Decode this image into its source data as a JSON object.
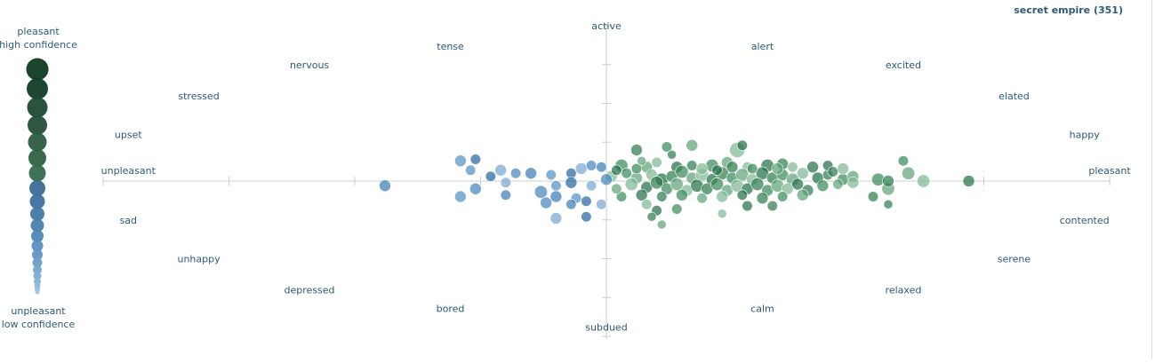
{
  "colors": {
    "axis": "#c8ccd1",
    "label": "#2e5a78",
    "pleasant_series": "#2e7d52",
    "unpleasant_series": "#3e7eb8"
  },
  "chart_data": {
    "type": "scatter",
    "title": "secret empire (351)",
    "x_axis": {
      "negative_label": "unpleasant",
      "positive_label": "pleasant",
      "xlim": [
        -1,
        1
      ]
    },
    "y_axis": {
      "positive_label": "active",
      "negative_label": "subdued",
      "ylim": [
        -1,
        1
      ]
    },
    "grid": false,
    "legend": {
      "placement": "left",
      "top_label_1": "pleasant",
      "top_label_2": "high confidence",
      "bottom_label_1": "unpleasant",
      "bottom_label_2": "low confidence"
    },
    "emotion_labels": [
      {
        "text": "active",
        "x": 0.0,
        "y": 1.0
      },
      {
        "text": "alert",
        "x": 0.31,
        "y": 0.87
      },
      {
        "text": "excited",
        "x": 0.59,
        "y": 0.75
      },
      {
        "text": "elated",
        "x": 0.81,
        "y": 0.55
      },
      {
        "text": "happy",
        "x": 0.95,
        "y": 0.3
      },
      {
        "text": "pleasant",
        "x": 1.0,
        "y": 0.07
      },
      {
        "text": "contented",
        "x": 0.95,
        "y": -0.25
      },
      {
        "text": "serene",
        "x": 0.81,
        "y": -0.5
      },
      {
        "text": "relaxed",
        "x": 0.59,
        "y": -0.7
      },
      {
        "text": "calm",
        "x": 0.31,
        "y": -0.82
      },
      {
        "text": "subdued",
        "x": 0.0,
        "y": -0.94
      },
      {
        "text": "bored",
        "x": -0.31,
        "y": -0.82
      },
      {
        "text": "depressed",
        "x": -0.59,
        "y": -0.7
      },
      {
        "text": "unhappy",
        "x": -0.81,
        "y": -0.5
      },
      {
        "text": "sad",
        "x": -0.95,
        "y": -0.25
      },
      {
        "text": "unpleasant",
        "x": -0.95,
        "y": 0.07
      },
      {
        "text": "upset",
        "x": -0.95,
        "y": 0.3
      },
      {
        "text": "stressed",
        "x": -0.81,
        "y": 0.55
      },
      {
        "text": "nervous",
        "x": -0.59,
        "y": 0.75
      },
      {
        "text": "tense",
        "x": -0.31,
        "y": 0.87
      }
    ],
    "series": [
      {
        "valence": "pleasant",
        "points": [
          {
            "x": 0.06,
            "y": 0.2,
            "s": 0.5
          },
          {
            "x": 0.12,
            "y": 0.22,
            "s": 0.4
          },
          {
            "x": 0.17,
            "y": 0.23,
            "s": 0.5
          },
          {
            "x": 0.26,
            "y": 0.2,
            "s": 0.8
          },
          {
            "x": 0.27,
            "y": 0.23,
            "s": 0.4
          },
          {
            "x": 0.13,
            "y": 0.17,
            "s": 0.3
          },
          {
            "x": 0.03,
            "y": 0.1,
            "s": 0.6
          },
          {
            "x": 0.08,
            "y": 0.09,
            "s": 0.5
          },
          {
            "x": 0.1,
            "y": 0.12,
            "s": 0.4
          },
          {
            "x": 0.14,
            "y": 0.09,
            "s": 0.5
          },
          {
            "x": 0.17,
            "y": 0.1,
            "s": 0.4
          },
          {
            "x": 0.21,
            "y": 0.1,
            "s": 0.6
          },
          {
            "x": 0.24,
            "y": 0.12,
            "s": 0.5
          },
          {
            "x": 0.28,
            "y": 0.09,
            "s": 0.4
          },
          {
            "x": 0.32,
            "y": 0.1,
            "s": 0.6
          },
          {
            "x": 0.35,
            "y": 0.11,
            "s": 0.5
          },
          {
            "x": 0.04,
            "y": 0.05,
            "s": 0.4
          },
          {
            "x": 0.06,
            "y": 0.02,
            "s": 0.5
          },
          {
            "x": 0.09,
            "y": 0.04,
            "s": 0.5
          },
          {
            "x": 0.11,
            "y": 0.01,
            "s": 0.6
          },
          {
            "x": 0.13,
            "y": 0.03,
            "s": 0.5
          },
          {
            "x": 0.15,
            "y": 0.06,
            "s": 0.6
          },
          {
            "x": 0.17,
            "y": 0.02,
            "s": 0.5
          },
          {
            "x": 0.19,
            "y": 0.04,
            "s": 0.6
          },
          {
            "x": 0.21,
            "y": 0.01,
            "s": 0.5
          },
          {
            "x": 0.23,
            "y": 0.05,
            "s": 0.6
          },
          {
            "x": 0.25,
            "y": 0.02,
            "s": 0.5
          },
          {
            "x": 0.27,
            "y": 0.04,
            "s": 0.6
          },
          {
            "x": 0.29,
            "y": 0.01,
            "s": 0.5
          },
          {
            "x": 0.31,
            "y": 0.05,
            "s": 0.6
          },
          {
            "x": 0.33,
            "y": 0.02,
            "s": 0.5
          },
          {
            "x": 0.35,
            "y": 0.04,
            "s": 0.5
          },
          {
            "x": 0.37,
            "y": 0.01,
            "s": 0.6
          },
          {
            "x": 0.39,
            "y": 0.05,
            "s": 0.5
          },
          {
            "x": 0.42,
            "y": 0.02,
            "s": 0.5
          },
          {
            "x": 0.44,
            "y": 0.04,
            "s": 0.4
          },
          {
            "x": 0.47,
            "y": 0.01,
            "s": 0.5
          },
          {
            "x": 0.49,
            "y": 0.03,
            "s": 0.5
          },
          {
            "x": 0.05,
            "y": -0.02,
            "s": 0.6
          },
          {
            "x": 0.08,
            "y": -0.04,
            "s": 0.5
          },
          {
            "x": 0.1,
            "y": -0.01,
            "s": 0.6
          },
          {
            "x": 0.12,
            "y": -0.05,
            "s": 0.5
          },
          {
            "x": 0.14,
            "y": -0.02,
            "s": 0.6
          },
          {
            "x": 0.16,
            "y": -0.06,
            "s": 0.5
          },
          {
            "x": 0.18,
            "y": -0.03,
            "s": 0.6
          },
          {
            "x": 0.2,
            "y": -0.05,
            "s": 0.5
          },
          {
            "x": 0.22,
            "y": -0.02,
            "s": 0.6
          },
          {
            "x": 0.24,
            "y": -0.06,
            "s": 0.5
          },
          {
            "x": 0.26,
            "y": -0.03,
            "s": 0.6
          },
          {
            "x": 0.28,
            "y": -0.05,
            "s": 0.5
          },
          {
            "x": 0.3,
            "y": -0.02,
            "s": 0.6
          },
          {
            "x": 0.32,
            "y": -0.06,
            "s": 0.5
          },
          {
            "x": 0.34,
            "y": -0.03,
            "s": 0.6
          },
          {
            "x": 0.36,
            "y": -0.05,
            "s": 0.5
          },
          {
            "x": 0.38,
            "y": -0.02,
            "s": 0.5
          },
          {
            "x": 0.4,
            "y": -0.06,
            "s": 0.5
          },
          {
            "x": 0.43,
            "y": -0.03,
            "s": 0.5
          },
          {
            "x": 0.46,
            "y": -0.02,
            "s": 0.4
          },
          {
            "x": 0.49,
            "y": -0.01,
            "s": 0.5
          },
          {
            "x": 0.07,
            "y": -0.09,
            "s": 0.5
          },
          {
            "x": 0.11,
            "y": -0.1,
            "s": 0.4
          },
          {
            "x": 0.15,
            "y": -0.09,
            "s": 0.5
          },
          {
            "x": 0.19,
            "y": -0.11,
            "s": 0.4
          },
          {
            "x": 0.23,
            "y": -0.1,
            "s": 0.5
          },
          {
            "x": 0.27,
            "y": -0.09,
            "s": 0.4
          },
          {
            "x": 0.31,
            "y": -0.11,
            "s": 0.5
          },
          {
            "x": 0.35,
            "y": -0.1,
            "s": 0.4
          },
          {
            "x": 0.39,
            "y": -0.09,
            "s": 0.5
          },
          {
            "x": 0.08,
            "y": -0.15,
            "s": 0.4
          },
          {
            "x": 0.1,
            "y": -0.19,
            "s": 0.4
          },
          {
            "x": 0.09,
            "y": -0.23,
            "s": 0.3
          },
          {
            "x": 0.14,
            "y": -0.18,
            "s": 0.4
          },
          {
            "x": 0.11,
            "y": -0.28,
            "s": 0.3
          },
          {
            "x": 0.23,
            "y": -0.21,
            "s": 0.3
          },
          {
            "x": 0.28,
            "y": -0.16,
            "s": 0.4
          },
          {
            "x": 0.33,
            "y": -0.16,
            "s": 0.4
          },
          {
            "x": 0.54,
            "y": 0.01,
            "s": 0.6
          },
          {
            "x": 0.56,
            "y": -0.05,
            "s": 0.6
          },
          {
            "x": 0.47,
            "y": 0.08,
            "s": 0.5
          },
          {
            "x": 0.44,
            "y": 0.1,
            "s": 0.4
          },
          {
            "x": 0.53,
            "y": -0.1,
            "s": 0.4
          },
          {
            "x": 0.59,
            "y": 0.13,
            "s": 0.4
          },
          {
            "x": 0.6,
            "y": 0.05,
            "s": 0.6
          },
          {
            "x": 0.63,
            "y": 0.0,
            "s": 0.6
          },
          {
            "x": 0.72,
            "y": 0.0,
            "s": 0.5
          },
          {
            "x": 0.56,
            "y": 0.0,
            "s": 0.5
          },
          {
            "x": 0.06,
            "y": 0.08,
            "s": 0.4
          },
          {
            "x": 0.07,
            "y": 0.13,
            "s": 0.3
          },
          {
            "x": 0.19,
            "y": 0.08,
            "s": 0.5
          },
          {
            "x": 0.22,
            "y": 0.07,
            "s": 0.4
          },
          {
            "x": 0.25,
            "y": 0.09,
            "s": 0.5
          },
          {
            "x": 0.29,
            "y": 0.08,
            "s": 0.4
          },
          {
            "x": 0.34,
            "y": 0.08,
            "s": 0.5
          },
          {
            "x": 0.37,
            "y": 0.09,
            "s": 0.4
          },
          {
            "x": 0.41,
            "y": 0.09,
            "s": 0.5
          },
          {
            "x": 0.45,
            "y": 0.06,
            "s": 0.4
          },
          {
            "x": 0.03,
            "y": -0.1,
            "s": 0.4
          },
          {
            "x": 0.02,
            "y": -0.05,
            "s": 0.4
          },
          {
            "x": 0.01,
            "y": 0.03,
            "s": 0.5
          },
          {
            "x": 0.02,
            "y": 0.07,
            "s": 0.4
          },
          {
            "x": 0.56,
            "y": -0.15,
            "s": 0.3
          }
        ]
      },
      {
        "valence": "unpleasant",
        "points": [
          {
            "x": -0.44,
            "y": -0.03,
            "s": 0.5
          },
          {
            "x": -0.29,
            "y": 0.13,
            "s": 0.5
          },
          {
            "x": -0.26,
            "y": 0.14,
            "s": 0.4
          },
          {
            "x": -0.21,
            "y": 0.07,
            "s": 0.5
          },
          {
            "x": -0.18,
            "y": 0.05,
            "s": 0.4
          },
          {
            "x": -0.15,
            "y": 0.05,
            "s": 0.5
          },
          {
            "x": -0.11,
            "y": 0.04,
            "s": 0.4
          },
          {
            "x": -0.07,
            "y": 0.05,
            "s": 0.4
          },
          {
            "x": -0.05,
            "y": 0.08,
            "s": 0.5
          },
          {
            "x": -0.03,
            "y": 0.1,
            "s": 0.4
          },
          {
            "x": -0.01,
            "y": 0.09,
            "s": 0.4
          },
          {
            "x": -0.27,
            "y": 0.07,
            "s": 0.4
          },
          {
            "x": -0.23,
            "y": 0.03,
            "s": 0.4
          },
          {
            "x": -0.2,
            "y": -0.01,
            "s": 0.4
          },
          {
            "x": -0.26,
            "y": -0.05,
            "s": 0.5
          },
          {
            "x": -0.2,
            "y": -0.09,
            "s": 0.4
          },
          {
            "x": -0.1,
            "y": -0.03,
            "s": 0.4
          },
          {
            "x": -0.07,
            "y": -0.01,
            "s": 0.5
          },
          {
            "x": -0.03,
            "y": -0.03,
            "s": 0.4
          },
          {
            "x": -0.13,
            "y": -0.07,
            "s": 0.6
          },
          {
            "x": -0.1,
            "y": -0.1,
            "s": 0.5
          },
          {
            "x": -0.06,
            "y": -0.11,
            "s": 0.4
          },
          {
            "x": -0.04,
            "y": -0.13,
            "s": 0.4
          },
          {
            "x": -0.01,
            "y": -0.15,
            "s": 0.4
          },
          {
            "x": -0.12,
            "y": -0.14,
            "s": 0.5
          },
          {
            "x": -0.07,
            "y": -0.15,
            "s": 0.4
          },
          {
            "x": -0.29,
            "y": -0.1,
            "s": 0.5
          },
          {
            "x": -0.04,
            "y": -0.23,
            "s": 0.4
          },
          {
            "x": -0.1,
            "y": -0.24,
            "s": 0.5
          },
          {
            "x": -0.0,
            "y": 0.01,
            "s": 0.5
          }
        ]
      }
    ]
  }
}
